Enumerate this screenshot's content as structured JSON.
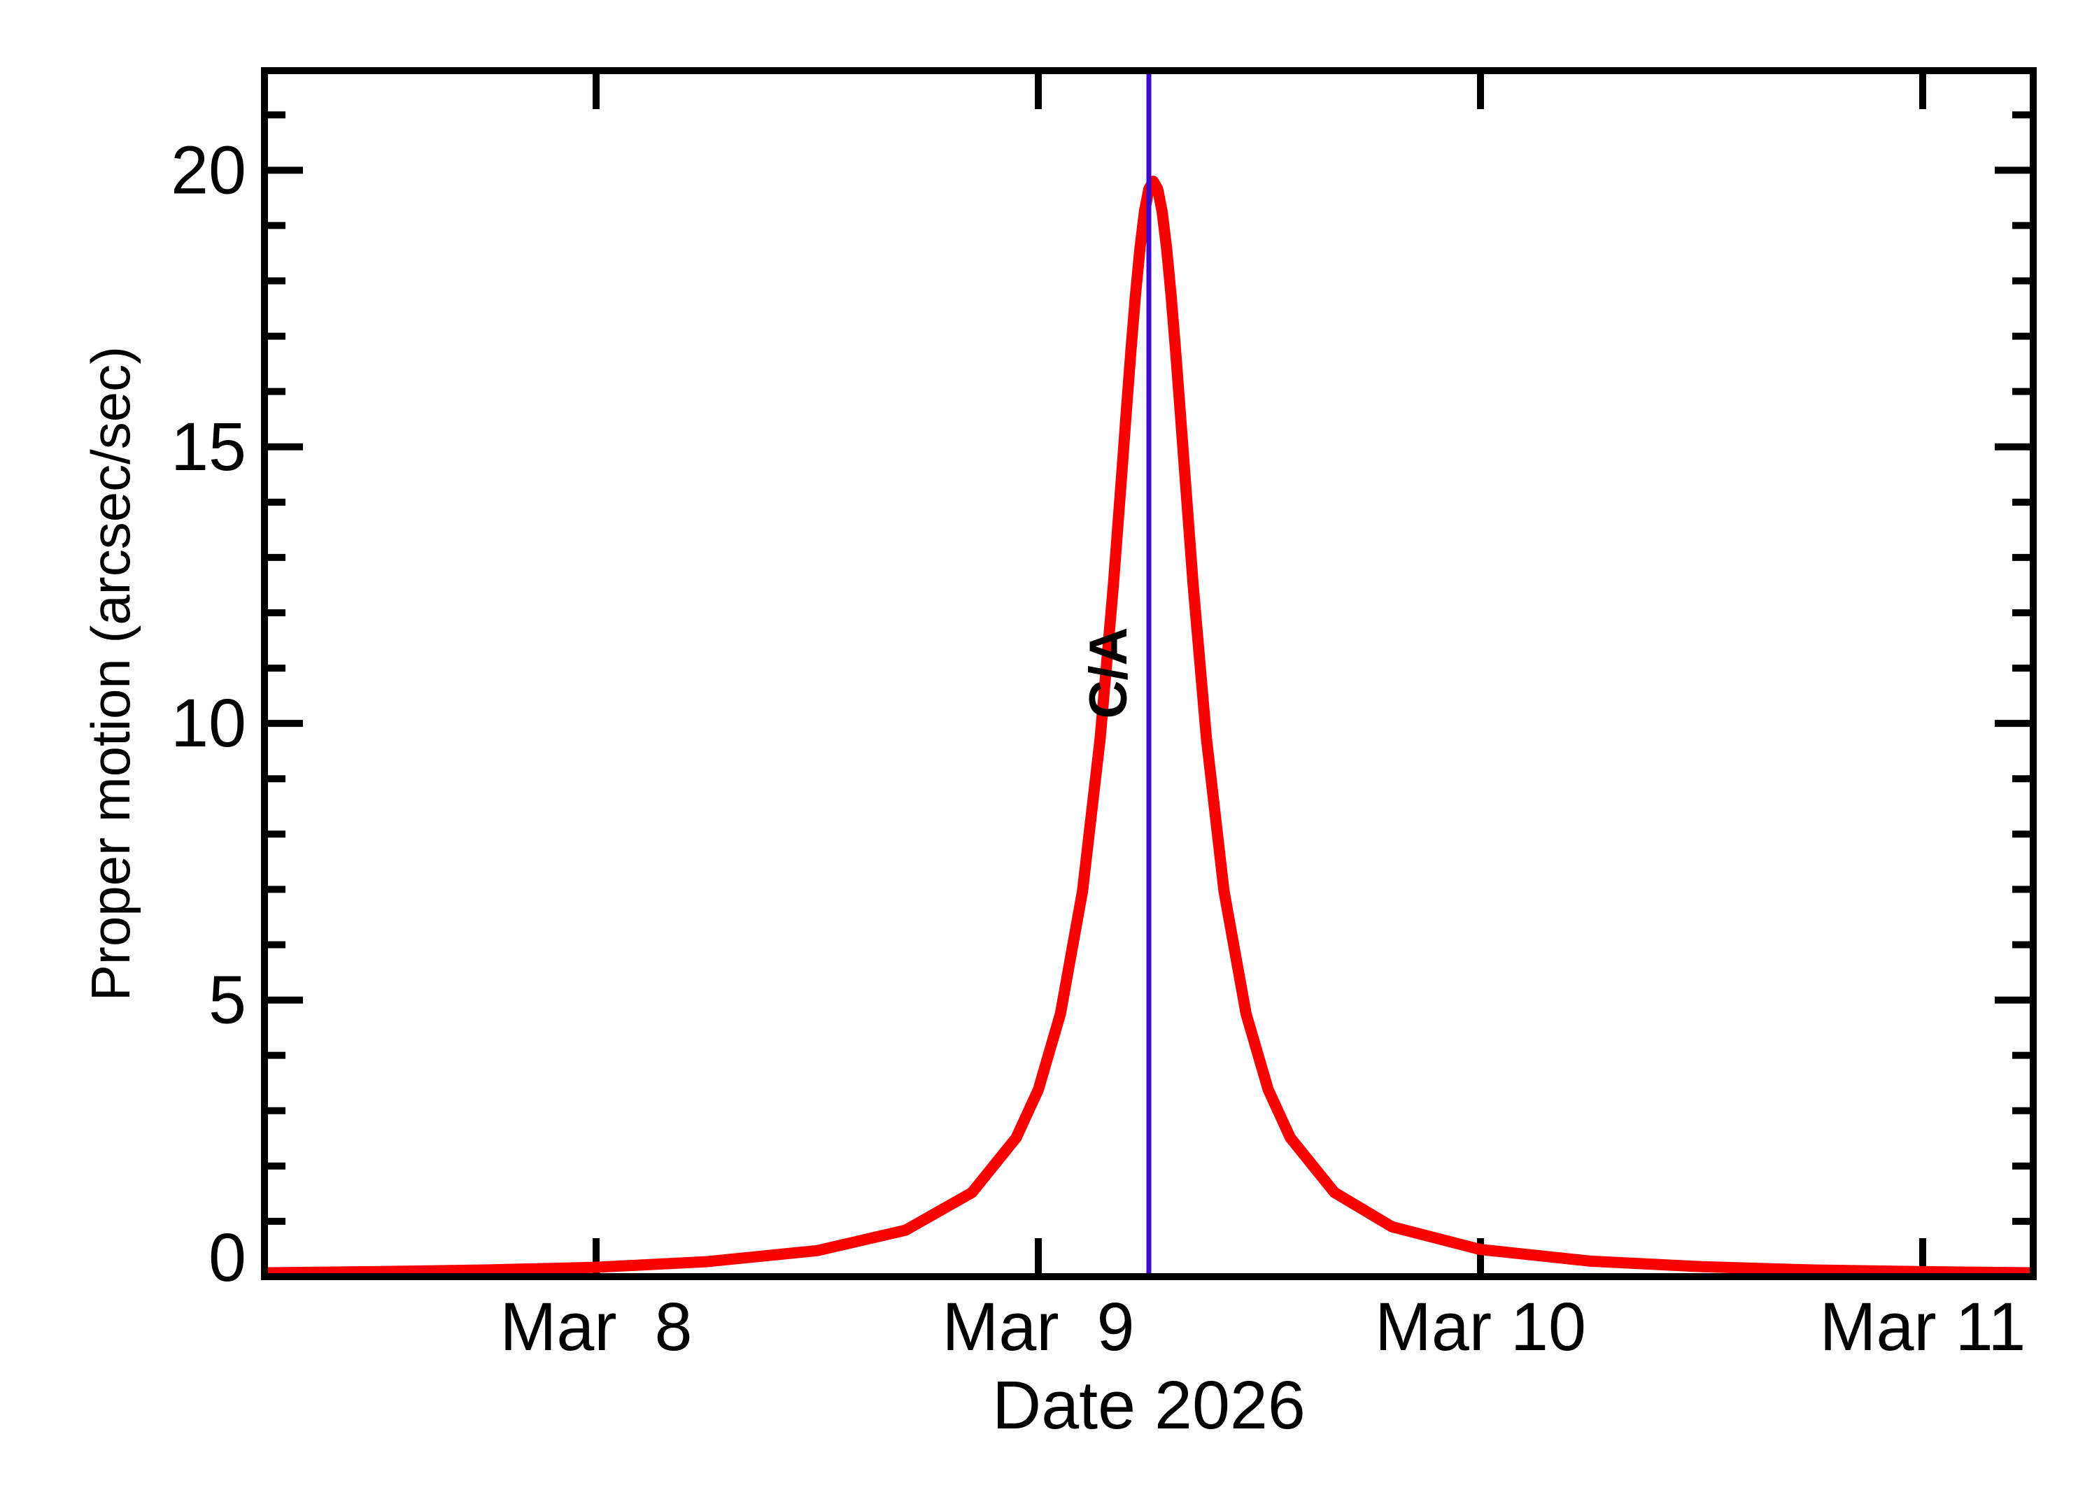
{
  "chart_data": {
    "type": "line",
    "title": "",
    "xlabel": "Date 2026",
    "ylabel": "Proper motion (arcsec/sec)",
    "x_axis": {
      "unit": "day of March 2026",
      "xlim": [
        7.25,
        11.25
      ],
      "ticks": [
        {
          "value": 8,
          "label": "Mar  8"
        },
        {
          "value": 9,
          "label": "Mar  9"
        },
        {
          "value": 10,
          "label": "Mar 10"
        },
        {
          "value": 11,
          "label": "Mar 11"
        }
      ]
    },
    "y_axis": {
      "unit": "arcsec/sec",
      "ylim": [
        0,
        21.8
      ],
      "major_ticks": [
        0,
        5,
        10,
        15,
        20
      ],
      "minor_tick_step": 1
    },
    "grid": "off",
    "legend": "none",
    "series": [
      {
        "name": "proper-motion",
        "color": "#fa0000",
        "x": [
          7.25,
          7.5,
          7.75,
          8.0,
          8.25,
          8.5,
          8.7,
          8.85,
          8.95,
          9.0,
          9.05,
          9.1,
          9.14,
          9.17,
          9.19,
          9.2,
          9.21,
          9.22,
          9.23,
          9.24,
          9.25,
          9.26,
          9.27,
          9.28,
          9.29,
          9.3,
          9.31,
          9.32,
          9.33,
          9.35,
          9.38,
          9.42,
          9.47,
          9.52,
          9.57,
          9.67,
          9.8,
          10.0,
          10.25,
          10.5,
          10.75,
          11.0,
          11.25
        ],
        "y": [
          0.07,
          0.09,
          0.12,
          0.17,
          0.27,
          0.47,
          0.84,
          1.52,
          2.51,
          3.38,
          4.75,
          6.97,
          9.74,
          12.52,
          14.65,
          15.74,
          16.79,
          17.76,
          18.6,
          19.25,
          19.66,
          19.8,
          19.66,
          19.25,
          18.6,
          17.76,
          16.79,
          15.74,
          14.65,
          12.52,
          9.74,
          6.97,
          4.75,
          3.38,
          2.51,
          1.52,
          0.9,
          0.49,
          0.28,
          0.18,
          0.12,
          0.09,
          0.07
        ]
      }
    ],
    "peak": {
      "x": 9.26,
      "y": 19.8
    },
    "annotation": {
      "label": "C/A",
      "x": 9.25,
      "color": "#3c0ac8"
    },
    "colors": {
      "curve": "#fa0000",
      "closest_approach": "#3c0ac8",
      "axis": "#000000",
      "background": "#ffffff"
    }
  }
}
